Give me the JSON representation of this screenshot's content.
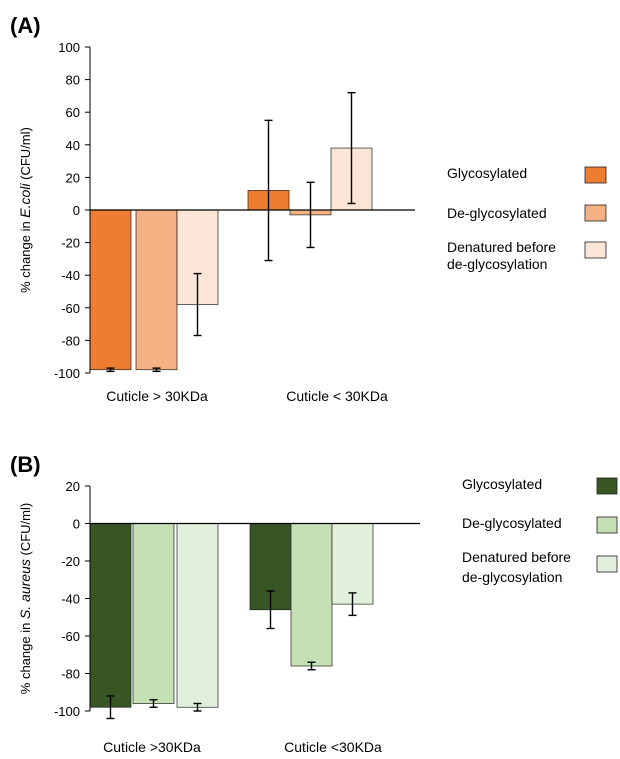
{
  "chart_data": [
    {
      "panel_label": "(A)",
      "type": "bar",
      "ylabel_prefix": "% change  in ",
      "ylabel_italic": "E.coli",
      "ylabel_suffix": " (CFU/ml)",
      "xlabel": "",
      "ylim": [
        -100,
        100
      ],
      "yticks": [
        100,
        80,
        60,
        40,
        20,
        0,
        -20,
        -40,
        -60,
        -80,
        -100
      ],
      "categories": [
        "Cuticle > 30KDa",
        "Cuticle < 30KDa"
      ],
      "series": [
        {
          "name": "Glycosylated",
          "color": "#ed7d31",
          "values": [
            -98,
            12
          ],
          "errors": [
            1,
            43
          ]
        },
        {
          "name": "De-glycosylated",
          "color": "#f4b183",
          "values": [
            -98,
            -3
          ],
          "errors": [
            1,
            20
          ]
        },
        {
          "name": "Denatured before de-glycosylation",
          "color": "#fbe5d6",
          "values": [
            -58,
            38
          ],
          "errors": [
            19,
            34
          ]
        }
      ],
      "legend_lines": [
        [
          "Glycosylated"
        ],
        [
          "De-glycosylated"
        ],
        [
          "Denatured before",
          "de-glycosylation"
        ]
      ],
      "legend_position": "right",
      "grid": false
    },
    {
      "panel_label": "(B)",
      "type": "bar",
      "ylabel_prefix": "% change in ",
      "ylabel_italic": "S. aureus",
      "ylabel_suffix": " (CFU/ml)",
      "xlabel": "",
      "ylim": [
        -100,
        20
      ],
      "yticks": [
        20,
        0,
        -20,
        -40,
        -60,
        -80,
        -100
      ],
      "categories": [
        "Cuticle >30KDa",
        "Cuticle <30KDa"
      ],
      "series": [
        {
          "name": "Glycosylated",
          "color": "#375623",
          "values": [
            -98,
            -46
          ],
          "errors": [
            6,
            10
          ]
        },
        {
          "name": "De-glycosylated",
          "color": "#c5e0b4",
          "values": [
            -96,
            -76
          ],
          "errors": [
            2,
            2
          ]
        },
        {
          "name": "Denatured before de-glycosylation",
          "color": "#e2efda",
          "values": [
            -98,
            -43
          ],
          "errors": [
            2,
            6
          ]
        }
      ],
      "legend_lines": [
        [
          "Glycosylated"
        ],
        [
          "De-glycosylated"
        ],
        [
          "Denatured before",
          "de-glycosylation"
        ]
      ],
      "legend_position": "right",
      "grid": false
    }
  ]
}
